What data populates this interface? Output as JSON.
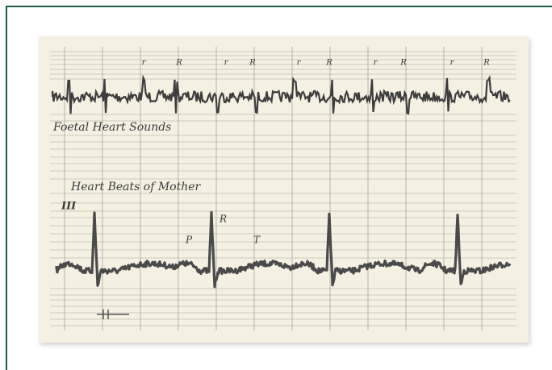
{
  "figure": {
    "upper_label": "Foetal Heart Sounds",
    "lower_label": "Heart Beats of Mother",
    "lead": "III",
    "wave_labels": [
      "P",
      "R",
      "T"
    ],
    "marker_labels": [
      "r",
      "R",
      "r",
      "R",
      "r",
      "R",
      "r",
      "R",
      "r",
      "R"
    ]
  }
}
